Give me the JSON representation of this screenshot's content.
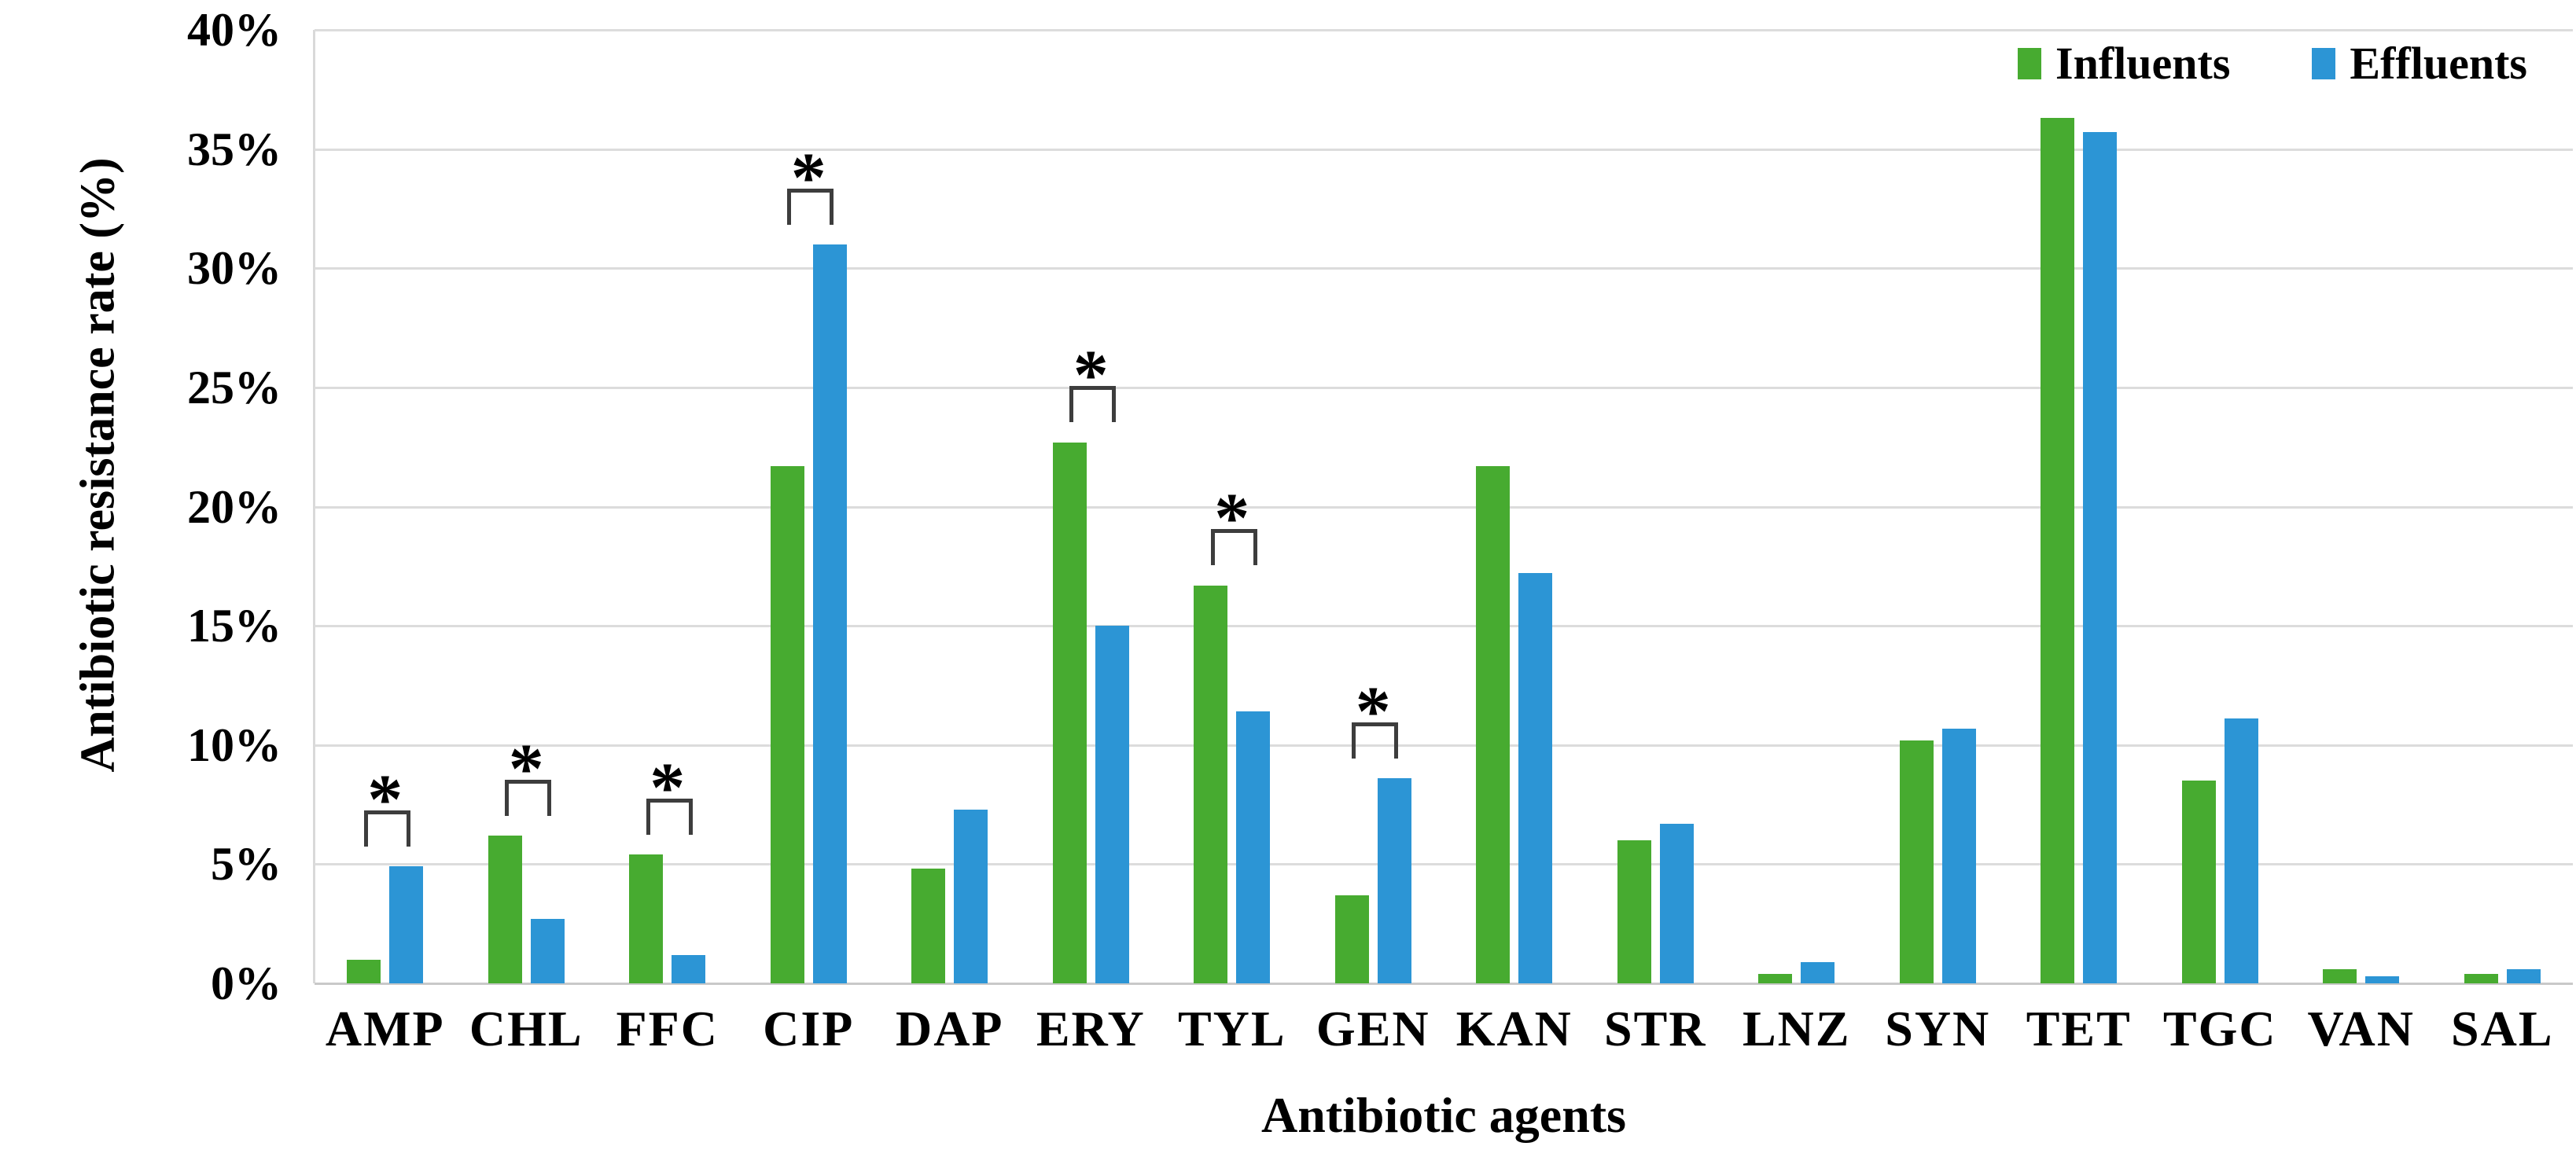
{
  "figure": {
    "background": "#ffffff",
    "text_color": "#000000",
    "gridline_color": "#dcdcdc"
  },
  "axes": {
    "y_title": "Antibiotic resistance rate (%)",
    "x_title": "Antibiotic agents"
  },
  "legend": {
    "items": [
      {
        "label": "Influents",
        "color": "#47AB30"
      },
      {
        "label": "Effluents",
        "color": "#2C95D5"
      }
    ]
  },
  "chart_data": {
    "type": "bar",
    "title": "",
    "xlabel": "Antibiotic agents",
    "ylabel": "Antibiotic resistance rate (%)",
    "ylim": [
      0,
      40
    ],
    "y_tick_step": 5,
    "y_tick_labels": [
      "0%",
      "5%",
      "10%",
      "15%",
      "20%",
      "25%",
      "30%",
      "35%",
      "40%"
    ],
    "grid": "horizontal",
    "legend_position": "top-right",
    "categories": [
      "AMP",
      "CHL",
      "FFC",
      "CIP",
      "DAP",
      "ERY",
      "TYL",
      "GEN",
      "KAN",
      "STR",
      "LNZ",
      "SYN",
      "TET",
      "TGC",
      "VAN",
      "SAL"
    ],
    "series": [
      {
        "name": "Influents",
        "color": "#47AB30",
        "values": [
          1.0,
          6.2,
          5.4,
          21.7,
          4.8,
          22.7,
          16.7,
          3.7,
          21.7,
          6.0,
          0.4,
          10.2,
          36.3,
          8.5,
          0.6,
          0.4
        ]
      },
      {
        "name": "Effluents",
        "color": "#2C95D5",
        "values": [
          4.9,
          2.7,
          1.2,
          31.0,
          7.3,
          15.0,
          11.4,
          8.6,
          17.2,
          6.7,
          0.9,
          10.7,
          35.7,
          11.1,
          0.3,
          0.6
        ]
      }
    ],
    "significance": {
      "marker": "*",
      "categories": [
        "AMP",
        "CHL",
        "FFC",
        "CIP",
        "ERY",
        "TYL",
        "GEN"
      ]
    }
  }
}
